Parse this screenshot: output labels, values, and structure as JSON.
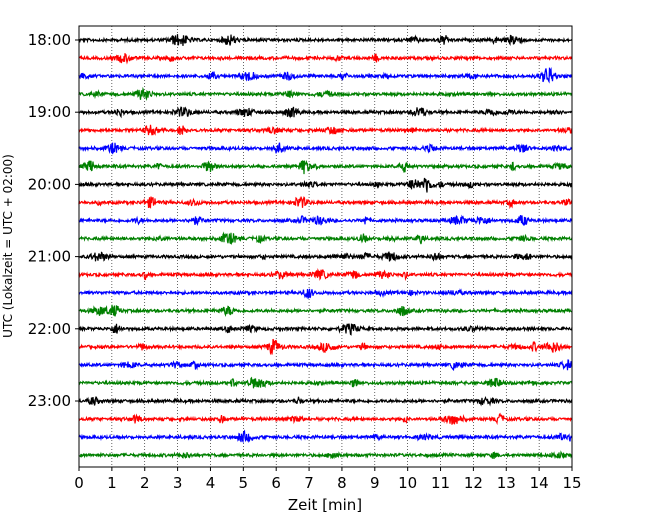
{
  "chart_data": {
    "type": "line",
    "xlabel": "Zeit  [min]",
    "ylabel": "UTC (Lokalzeit = UTC + 02:00)",
    "xlim": [
      0,
      15
    ],
    "x_ticks": [
      "0",
      "1",
      "2",
      "3",
      "4",
      "5",
      "6",
      "7",
      "8",
      "9",
      "10",
      "11",
      "12",
      "13",
      "14",
      "15"
    ],
    "y_tick_labels": [
      "18:00",
      "19:00",
      "20:00",
      "21:00",
      "22:00",
      "23:00"
    ],
    "traces_per_hour": 4,
    "trace_count": 24,
    "trace_colors": [
      "#000000",
      "#ff0000",
      "#0000ff",
      "#008000"
    ],
    "grid": "vertical-dotted"
  }
}
